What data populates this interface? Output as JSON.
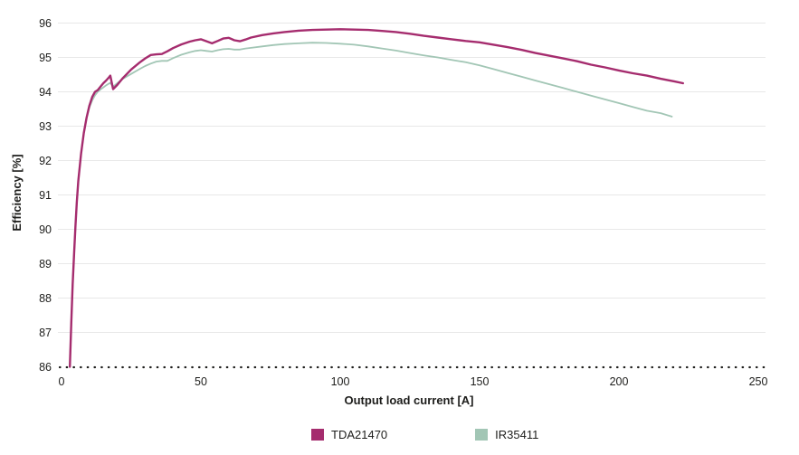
{
  "chart_data": {
    "type": "line",
    "title": "",
    "xlabel": "Output load current [A]",
    "ylabel": "Efficiency [%]",
    "xlim": [
      0,
      250
    ],
    "ylim": [
      86,
      96
    ],
    "x_ticks": [
      0,
      50,
      100,
      150,
      200,
      250
    ],
    "y_ticks": [
      86,
      87,
      88,
      89,
      90,
      91,
      92,
      93,
      94,
      95,
      96
    ],
    "grid": "horizontal-only",
    "gridline_color": "#e8e8e8",
    "baseline_style": "dotted",
    "baseline_color": "#1d1d1b",
    "legend_position": "bottom-center",
    "series": [
      {
        "name": "TDA21470",
        "color": "#a52c6e",
        "line_width": 2.4,
        "points": [
          [
            3,
            86.0
          ],
          [
            3.5,
            87.3
          ],
          [
            4,
            88.4
          ],
          [
            4.5,
            89.3
          ],
          [
            5,
            90.1
          ],
          [
            5.5,
            90.8
          ],
          [
            6,
            91.4
          ],
          [
            7,
            92.2
          ],
          [
            8,
            92.8
          ],
          [
            9,
            93.25
          ],
          [
            10,
            93.6
          ],
          [
            11,
            93.85
          ],
          [
            12,
            94.0
          ],
          [
            13,
            94.05
          ],
          [
            14,
            94.15
          ],
          [
            15,
            94.25
          ],
          [
            16,
            94.33
          ],
          [
            17,
            94.42
          ],
          [
            17.5,
            94.47
          ],
          [
            18.5,
            94.08
          ],
          [
            20,
            94.2
          ],
          [
            22,
            94.4
          ],
          [
            25,
            94.65
          ],
          [
            28,
            94.85
          ],
          [
            30,
            94.97
          ],
          [
            32,
            95.07
          ],
          [
            34,
            95.09
          ],
          [
            36,
            95.1
          ],
          [
            38,
            95.18
          ],
          [
            40,
            95.27
          ],
          [
            43,
            95.38
          ],
          [
            46,
            95.46
          ],
          [
            48,
            95.5
          ],
          [
            50,
            95.53
          ],
          [
            52,
            95.47
          ],
          [
            54,
            95.41
          ],
          [
            56,
            95.48
          ],
          [
            58,
            95.55
          ],
          [
            60,
            95.57
          ],
          [
            62,
            95.5
          ],
          [
            64,
            95.47
          ],
          [
            66,
            95.52
          ],
          [
            68,
            95.58
          ],
          [
            72,
            95.65
          ],
          [
            76,
            95.7
          ],
          [
            80,
            95.74
          ],
          [
            85,
            95.78
          ],
          [
            90,
            95.8
          ],
          [
            95,
            95.81
          ],
          [
            100,
            95.82
          ],
          [
            105,
            95.81
          ],
          [
            110,
            95.8
          ],
          [
            115,
            95.77
          ],
          [
            120,
            95.74
          ],
          [
            125,
            95.69
          ],
          [
            130,
            95.63
          ],
          [
            135,
            95.58
          ],
          [
            140,
            95.53
          ],
          [
            145,
            95.48
          ],
          [
            150,
            95.44
          ],
          [
            155,
            95.37
          ],
          [
            160,
            95.3
          ],
          [
            165,
            95.22
          ],
          [
            170,
            95.13
          ],
          [
            175,
            95.05
          ],
          [
            180,
            94.97
          ],
          [
            185,
            94.89
          ],
          [
            190,
            94.79
          ],
          [
            195,
            94.71
          ],
          [
            200,
            94.62
          ],
          [
            205,
            94.54
          ],
          [
            210,
            94.47
          ],
          [
            215,
            94.38
          ],
          [
            220,
            94.3
          ],
          [
            223,
            94.25
          ]
        ]
      },
      {
        "name": "IR35411",
        "color": "#a2c6b5",
        "line_width": 1.8,
        "points": [
          [
            3,
            86.0
          ],
          [
            3.5,
            87.3
          ],
          [
            4,
            88.4
          ],
          [
            4.5,
            89.3
          ],
          [
            5,
            90.1
          ],
          [
            5.5,
            90.8
          ],
          [
            6,
            91.4
          ],
          [
            7,
            92.2
          ],
          [
            8,
            92.8
          ],
          [
            9,
            93.25
          ],
          [
            10,
            93.55
          ],
          [
            11,
            93.75
          ],
          [
            12,
            93.9
          ],
          [
            13,
            94.0
          ],
          [
            14,
            94.07
          ],
          [
            15,
            94.13
          ],
          [
            16,
            94.19
          ],
          [
            17,
            94.24
          ],
          [
            17.5,
            94.26
          ],
          [
            18.5,
            94.15
          ],
          [
            20,
            94.25
          ],
          [
            22,
            94.38
          ],
          [
            25,
            94.52
          ],
          [
            28,
            94.66
          ],
          [
            30,
            94.75
          ],
          [
            32,
            94.82
          ],
          [
            34,
            94.88
          ],
          [
            36,
            94.9
          ],
          [
            38,
            94.9
          ],
          [
            40,
            94.98
          ],
          [
            43,
            95.08
          ],
          [
            46,
            95.15
          ],
          [
            48,
            95.19
          ],
          [
            50,
            95.21
          ],
          [
            52,
            95.19
          ],
          [
            54,
            95.17
          ],
          [
            56,
            95.21
          ],
          [
            58,
            95.24
          ],
          [
            60,
            95.25
          ],
          [
            62,
            95.23
          ],
          [
            64,
            95.23
          ],
          [
            66,
            95.26
          ],
          [
            68,
            95.28
          ],
          [
            72,
            95.32
          ],
          [
            76,
            95.36
          ],
          [
            80,
            95.39
          ],
          [
            85,
            95.41
          ],
          [
            90,
            95.43
          ],
          [
            95,
            95.42
          ],
          [
            100,
            95.4
          ],
          [
            105,
            95.37
          ],
          [
            110,
            95.32
          ],
          [
            115,
            95.26
          ],
          [
            120,
            95.2
          ],
          [
            125,
            95.13
          ],
          [
            130,
            95.06
          ],
          [
            135,
            95.0
          ],
          [
            140,
            94.93
          ],
          [
            145,
            94.86
          ],
          [
            150,
            94.77
          ],
          [
            155,
            94.66
          ],
          [
            160,
            94.55
          ],
          [
            165,
            94.44
          ],
          [
            170,
            94.33
          ],
          [
            175,
            94.22
          ],
          [
            180,
            94.11
          ],
          [
            185,
            94.0
          ],
          [
            190,
            93.89
          ],
          [
            195,
            93.78
          ],
          [
            200,
            93.67
          ],
          [
            205,
            93.56
          ],
          [
            210,
            93.45
          ],
          [
            215,
            93.38
          ],
          [
            219,
            93.28
          ]
        ]
      }
    ]
  },
  "colors": {
    "background": "#ffffff",
    "text": "#1d1d1b",
    "gridline": "#e8e8e8",
    "series_tda21470": "#a52c6e",
    "series_ir35411": "#a2c6b5"
  },
  "legend": {
    "items": [
      {
        "label": "TDA21470",
        "color": "#a52c6e"
      },
      {
        "label": "IR35411",
        "color": "#a2c6b5"
      }
    ]
  }
}
